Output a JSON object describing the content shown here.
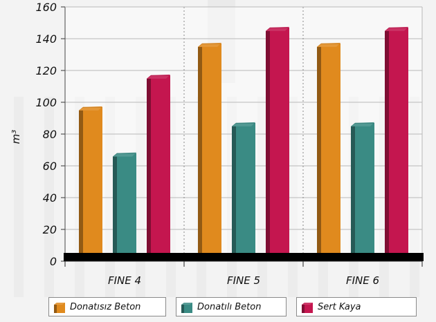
{
  "chart_data": {
    "type": "bar",
    "ylabel": "m³",
    "ylim": [
      0,
      160
    ],
    "yticks": [
      0,
      20,
      40,
      60,
      80,
      100,
      120,
      140,
      160
    ],
    "grid": true,
    "legend_position": "bottom",
    "categories": [
      "FINE 4",
      "FINE 5",
      "FINE 6"
    ],
    "series": [
      {
        "name": "Donatısız Beton",
        "color": "#e08a1e",
        "values": [
          97,
          137,
          137
        ]
      },
      {
        "name": "Donatılı Beton",
        "color": "#3a8b84",
        "values": [
          68,
          87,
          87
        ]
      },
      {
        "name": "Sert Kaya",
        "color": "#c4164f",
        "values": [
          117,
          147,
          147
        ]
      }
    ]
  }
}
